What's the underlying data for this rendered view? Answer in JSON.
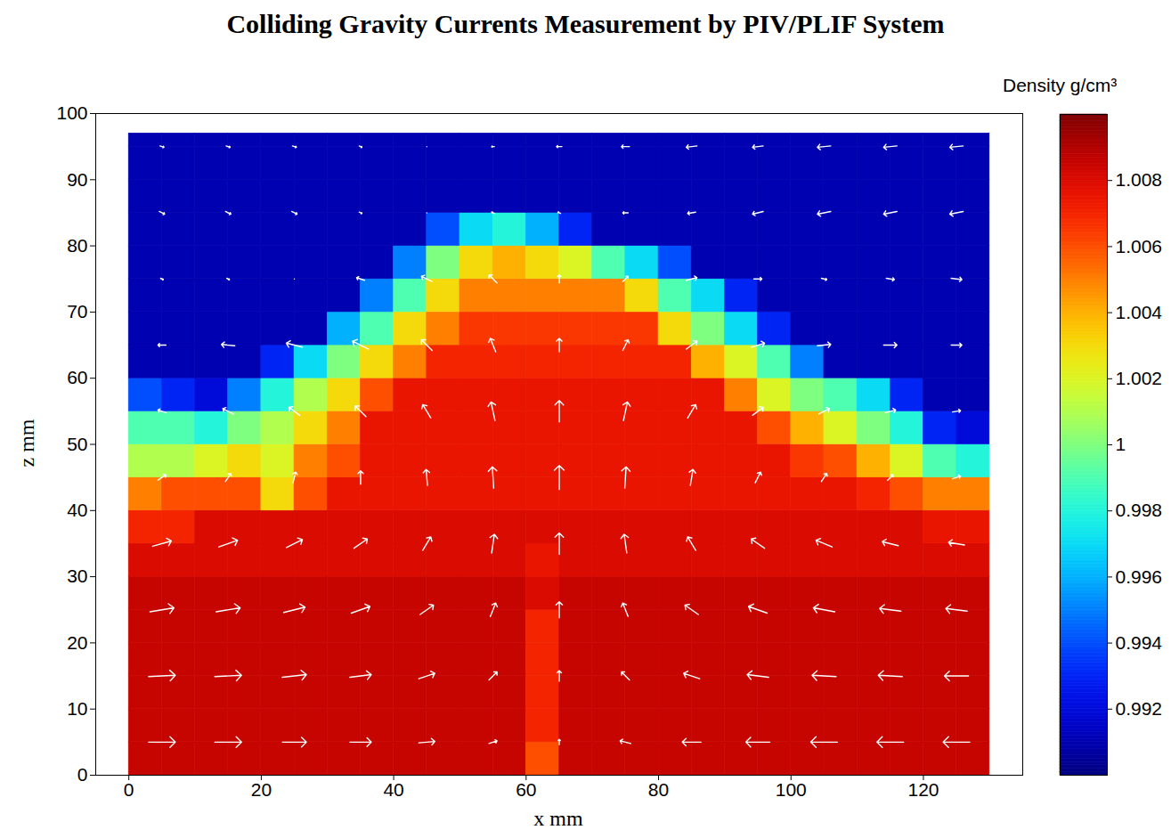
{
  "chart_data": {
    "type": "heatmap",
    "title": "Colliding Gravity Currents Measurement by PIV/PLIF System",
    "xlabel": "x mm",
    "ylabel": "z mm",
    "xlim": [
      -5,
      135
    ],
    "ylim": [
      0,
      100
    ],
    "xticks": [
      0,
      20,
      40,
      60,
      80,
      100,
      120
    ],
    "yticks": [
      0,
      10,
      20,
      30,
      40,
      50,
      60,
      70,
      80,
      90,
      100
    ],
    "density": {
      "x_edges": [
        0,
        5,
        10,
        15,
        20,
        25,
        30,
        35,
        40,
        45,
        50,
        55,
        60,
        65,
        70,
        75,
        80,
        85,
        90,
        95,
        100,
        105,
        110,
        115,
        120,
        125,
        130
      ],
      "z_edges": [
        0,
        5,
        10,
        15,
        20,
        25,
        30,
        35,
        40,
        45,
        50,
        55,
        60,
        65,
        70,
        75,
        80,
        85,
        90,
        95,
        97
      ],
      "values": [
        [
          1.0085,
          1.0085,
          1.0085,
          1.0085,
          1.0085,
          1.0085,
          1.0085,
          1.0085,
          1.0085,
          1.0085,
          1.0085,
          1.0085,
          1.006,
          1.0085,
          1.0085,
          1.0085,
          1.0085,
          1.0085,
          1.0085,
          1.0085,
          1.0085,
          1.0085,
          1.0085,
          1.0085,
          1.0085,
          1.0085
        ],
        [
          1.0085,
          1.0085,
          1.0085,
          1.0085,
          1.0085,
          1.0085,
          1.0085,
          1.0085,
          1.0085,
          1.0085,
          1.0085,
          1.0085,
          1.007,
          1.0085,
          1.0085,
          1.0085,
          1.0085,
          1.0085,
          1.0085,
          1.0085,
          1.0085,
          1.0085,
          1.0085,
          1.0085,
          1.0085,
          1.0085
        ],
        [
          1.0085,
          1.0085,
          1.0085,
          1.0085,
          1.0085,
          1.0085,
          1.0085,
          1.0085,
          1.0085,
          1.0085,
          1.0085,
          1.0085,
          1.007,
          1.0085,
          1.0085,
          1.0085,
          1.0085,
          1.0085,
          1.0085,
          1.0085,
          1.0085,
          1.0085,
          1.0085,
          1.0085,
          1.0085,
          1.0085
        ],
        [
          1.0085,
          1.0085,
          1.0085,
          1.0085,
          1.0085,
          1.0085,
          1.0085,
          1.0085,
          1.0085,
          1.0085,
          1.0085,
          1.0085,
          1.007,
          1.0085,
          1.0085,
          1.0085,
          1.0085,
          1.0085,
          1.0085,
          1.0085,
          1.0085,
          1.0085,
          1.0085,
          1.0085,
          1.0085,
          1.0085
        ],
        [
          1.0085,
          1.0085,
          1.0085,
          1.0085,
          1.0085,
          1.0085,
          1.0085,
          1.0085,
          1.0085,
          1.0085,
          1.0085,
          1.0085,
          1.007,
          1.0085,
          1.0085,
          1.0085,
          1.0085,
          1.0085,
          1.0085,
          1.0085,
          1.0085,
          1.0085,
          1.0085,
          1.0085,
          1.0085,
          1.0085
        ],
        [
          1.0085,
          1.0085,
          1.0085,
          1.0085,
          1.0085,
          1.0085,
          1.0085,
          1.0085,
          1.0085,
          1.0085,
          1.0085,
          1.0085,
          1.008,
          1.0085,
          1.0085,
          1.0085,
          1.0085,
          1.0085,
          1.0085,
          1.0085,
          1.0085,
          1.0085,
          1.0085,
          1.0085,
          1.0085,
          1.0085
        ],
        [
          1.008,
          1.008,
          1.008,
          1.008,
          1.008,
          1.008,
          1.008,
          1.008,
          1.008,
          1.008,
          1.008,
          1.008,
          1.0075,
          1.008,
          1.008,
          1.008,
          1.008,
          1.008,
          1.008,
          1.008,
          1.008,
          1.008,
          1.008,
          1.008,
          1.008,
          1.008
        ],
        [
          1.007,
          1.007,
          1.008,
          1.008,
          1.008,
          1.008,
          1.008,
          1.008,
          1.008,
          1.008,
          1.008,
          1.008,
          1.008,
          1.008,
          1.008,
          1.008,
          1.008,
          1.008,
          1.008,
          1.008,
          1.008,
          1.008,
          1.008,
          1.008,
          1.0075,
          1.0075
        ],
        [
          1.005,
          1.006,
          1.006,
          1.006,
          1.003,
          1.006,
          1.0075,
          1.0075,
          1.0075,
          1.0075,
          1.0075,
          1.0075,
          1.0075,
          1.0075,
          1.0075,
          1.0075,
          1.0075,
          1.0075,
          1.0075,
          1.0075,
          1.0075,
          1.0075,
          1.007,
          1.006,
          1.005,
          1.005
        ],
        [
          1.001,
          1.001,
          1.002,
          1.003,
          1.002,
          1.005,
          1.006,
          1.0075,
          1.0075,
          1.0075,
          1.0075,
          1.0075,
          1.0075,
          1.0075,
          1.0075,
          1.0075,
          1.0075,
          1.0075,
          1.0075,
          1.0075,
          1.0065,
          1.006,
          1.004,
          1.002,
          0.999,
          0.998
        ],
        [
          0.999,
          0.999,
          0.998,
          1.0,
          1.001,
          1.003,
          1.005,
          1.0075,
          1.0075,
          1.0075,
          1.0075,
          1.0075,
          1.0075,
          1.0075,
          1.0075,
          1.0075,
          1.0075,
          1.0075,
          1.0075,
          1.006,
          1.004,
          1.002,
          1.0,
          0.998,
          0.993,
          0.992
        ],
        [
          0.994,
          0.993,
          0.992,
          0.995,
          0.998,
          1.001,
          1.003,
          1.006,
          1.0075,
          1.0075,
          1.0075,
          1.0075,
          1.0075,
          1.0075,
          1.0075,
          1.0075,
          1.0075,
          1.0075,
          1.005,
          1.002,
          1.0,
          0.999,
          0.997,
          0.993,
          0.991,
          0.991
        ],
        [
          0.991,
          0.991,
          0.991,
          0.991,
          0.993,
          0.997,
          1.0,
          1.003,
          1.005,
          1.007,
          1.007,
          1.007,
          1.007,
          1.007,
          1.007,
          1.007,
          1.007,
          1.004,
          1.002,
          0.999,
          0.995,
          0.991,
          0.991,
          0.991,
          0.991,
          0.991
        ],
        [
          0.991,
          0.991,
          0.991,
          0.991,
          0.991,
          0.991,
          0.996,
          0.999,
          1.003,
          1.005,
          1.0065,
          1.0065,
          1.0065,
          1.0065,
          1.0065,
          1.0065,
          1.003,
          1.0,
          0.997,
          0.993,
          0.991,
          0.991,
          0.991,
          0.991,
          0.991,
          0.991
        ],
        [
          0.991,
          0.991,
          0.991,
          0.991,
          0.991,
          0.991,
          0.991,
          0.995,
          0.999,
          1.003,
          1.005,
          1.005,
          1.005,
          1.005,
          1.005,
          1.003,
          0.999,
          0.997,
          0.993,
          0.991,
          0.991,
          0.991,
          0.991,
          0.991,
          0.991,
          0.991
        ],
        [
          0.991,
          0.991,
          0.991,
          0.991,
          0.991,
          0.991,
          0.991,
          0.991,
          0.995,
          1.0,
          1.003,
          1.004,
          1.003,
          1.002,
          0.999,
          0.997,
          0.994,
          0.991,
          0.991,
          0.991,
          0.991,
          0.991,
          0.991,
          0.991,
          0.991,
          0.991
        ],
        [
          0.991,
          0.991,
          0.991,
          0.991,
          0.991,
          0.991,
          0.991,
          0.991,
          0.991,
          0.994,
          0.997,
          0.998,
          0.996,
          0.993,
          0.991,
          0.991,
          0.991,
          0.991,
          0.991,
          0.991,
          0.991,
          0.991,
          0.991,
          0.991,
          0.991,
          0.991
        ],
        [
          0.991,
          0.991,
          0.991,
          0.991,
          0.991,
          0.991,
          0.991,
          0.991,
          0.991,
          0.991,
          0.991,
          0.991,
          0.991,
          0.991,
          0.991,
          0.991,
          0.991,
          0.991,
          0.991,
          0.991,
          0.991,
          0.991,
          0.991,
          0.991,
          0.991,
          0.991
        ],
        [
          0.991,
          0.991,
          0.991,
          0.991,
          0.991,
          0.991,
          0.991,
          0.991,
          0.991,
          0.991,
          0.991,
          0.991,
          0.991,
          0.991,
          0.991,
          0.991,
          0.991,
          0.991,
          0.991,
          0.991,
          0.991,
          0.991,
          0.991,
          0.991,
          0.991,
          0.991
        ],
        [
          0.991,
          0.991,
          0.991,
          0.991,
          0.991,
          0.991,
          0.991,
          0.991,
          0.991,
          0.991,
          0.991,
          0.991,
          0.991,
          0.991,
          0.991,
          0.991,
          0.991,
          0.991,
          0.991,
          0.991,
          0.991,
          0.991,
          0.991,
          0.991,
          0.991,
          0.991
        ]
      ]
    },
    "colorbar": {
      "label": "Density g/cm³",
      "range": [
        0.99,
        1.01
      ],
      "ticks": [
        0.992,
        0.994,
        0.996,
        0.998,
        1,
        1.002,
        1.004,
        1.006,
        1.008
      ]
    },
    "vectors": {
      "x": [
        5,
        15,
        25,
        35,
        45,
        55,
        65,
        75,
        85,
        95,
        105,
        115,
        125
      ],
      "z": [
        5,
        15,
        25,
        35,
        45,
        55,
        65,
        75,
        85,
        95
      ],
      "u": [
        [
          1.0,
          1.0,
          0.9,
          0.8,
          0.6,
          0.3,
          0,
          -0.4,
          -0.7,
          -0.9,
          -1.0,
          -1.0,
          -1.0
        ],
        [
          1.0,
          1.0,
          0.9,
          0.8,
          0.6,
          0.3,
          0,
          -0.3,
          -0.6,
          -0.8,
          -0.9,
          -0.9,
          -0.9
        ],
        [
          0.9,
          0.9,
          0.8,
          0.7,
          0.5,
          0.2,
          0,
          -0.2,
          -0.5,
          -0.7,
          -0.8,
          -0.8,
          -0.8
        ],
        [
          0.7,
          0.7,
          0.6,
          0.5,
          0.3,
          0.1,
          0,
          -0.1,
          -0.3,
          -0.5,
          -0.6,
          -0.6,
          -0.6
        ],
        [
          0.3,
          0.2,
          0.1,
          0,
          -0.05,
          -0.05,
          0,
          0.05,
          0.1,
          0.2,
          0.2,
          0.2,
          0.3
        ],
        [
          -0.3,
          -0.4,
          -0.4,
          -0.4,
          -0.3,
          -0.15,
          0,
          0.15,
          0.3,
          0.4,
          0.4,
          0.4,
          0.3
        ],
        [
          -0.3,
          -0.5,
          -0.6,
          -0.6,
          -0.4,
          -0.2,
          0,
          0.2,
          0.4,
          0.5,
          0.5,
          0.5,
          0.4
        ],
        [
          0.1,
          0.1,
          0,
          -0.3,
          -0.4,
          -0.3,
          0,
          0.2,
          0.4,
          0.3,
          0.2,
          0.3,
          0.4
        ],
        [
          0.2,
          0.2,
          0.2,
          0.1,
          0,
          -0.1,
          -0.1,
          -0.2,
          -0.3,
          -0.4,
          -0.5,
          -0.5,
          -0.5
        ],
        [
          0.15,
          0.15,
          0.15,
          0.1,
          0,
          -0.1,
          -0.2,
          -0.3,
          -0.4,
          -0.4,
          -0.5,
          -0.5,
          -0.5
        ]
      ],
      "w": [
        [
          0,
          0,
          0,
          0,
          0.05,
          0.1,
          0.2,
          0.1,
          0,
          0,
          0,
          0,
          0
        ],
        [
          0.05,
          0.05,
          0.1,
          0.1,
          0.2,
          0.3,
          0.4,
          0.3,
          0.2,
          0.1,
          0.05,
          0.05,
          0
        ],
        [
          0.15,
          0.15,
          0.2,
          0.25,
          0.35,
          0.5,
          0.6,
          0.5,
          0.35,
          0.25,
          0.15,
          0.1,
          0.1
        ],
        [
          0.2,
          0.25,
          0.3,
          0.35,
          0.5,
          0.7,
          0.8,
          0.7,
          0.5,
          0.35,
          0.25,
          0.15,
          0.1
        ],
        [
          0.2,
          0.3,
          0.4,
          0.5,
          0.6,
          0.8,
          0.9,
          0.8,
          0.6,
          0.4,
          0.3,
          0.2,
          0.1
        ],
        [
          0.1,
          0.2,
          0.3,
          0.4,
          0.5,
          0.7,
          0.8,
          0.7,
          0.5,
          0.3,
          0.2,
          0.1,
          0.05
        ],
        [
          0,
          0.05,
          0.15,
          0.3,
          0.4,
          0.5,
          0.5,
          0.4,
          0.3,
          0.15,
          0.05,
          0,
          0
        ],
        [
          -0.05,
          -0.05,
          0,
          0.1,
          0.2,
          0.3,
          0.3,
          0.2,
          0.1,
          0,
          -0.05,
          -0.05,
          -0.05
        ],
        [
          -0.1,
          -0.1,
          -0.1,
          -0.05,
          0,
          0.05,
          0.05,
          0,
          -0.05,
          -0.1,
          -0.1,
          -0.1,
          -0.1
        ],
        [
          -0.05,
          -0.05,
          -0.05,
          -0.05,
          0,
          0,
          0,
          0,
          -0.05,
          -0.05,
          -0.05,
          -0.05,
          -0.05
        ]
      ]
    }
  }
}
